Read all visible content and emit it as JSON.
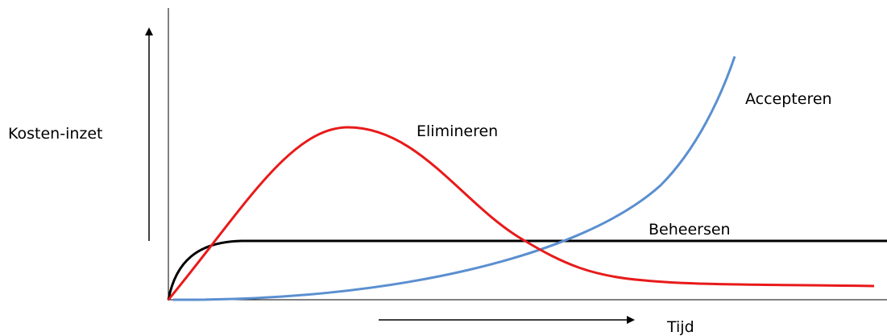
{
  "labels": {
    "y_axis": "Kosten-inzet",
    "x_axis": "Tijd"
  },
  "curves": [
    {
      "label": "Elimineren"
    },
    {
      "label": "Accepteren"
    },
    {
      "label": "Beheersen"
    }
  ]
}
